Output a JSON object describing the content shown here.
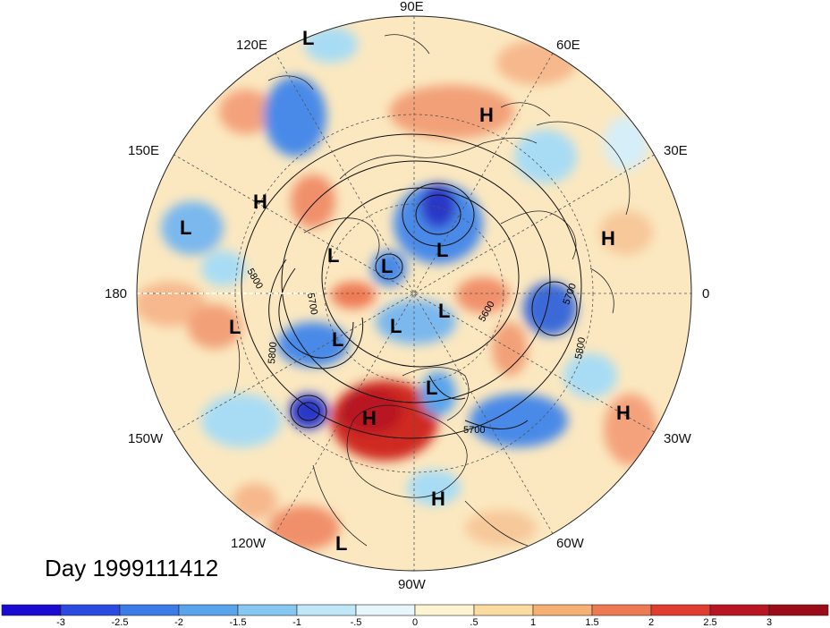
{
  "map": {
    "projection": "north polar stereographic",
    "longitude_labels": [
      {
        "text": "90E"
      },
      {
        "text": "60E"
      },
      {
        "text": "30E"
      },
      {
        "text": "0"
      },
      {
        "text": "30W"
      },
      {
        "text": "60W"
      },
      {
        "text": "90W"
      },
      {
        "text": "120W"
      },
      {
        "text": "150W"
      },
      {
        "text": "180"
      },
      {
        "text": "150E"
      },
      {
        "text": "120E"
      }
    ],
    "pressure_centers": [
      "L",
      "H",
      "H",
      "L",
      "L",
      "L",
      "L",
      "H",
      "L",
      "L",
      "L",
      "L",
      "L",
      "H",
      "H",
      "H",
      "L"
    ],
    "contour_labels": [
      "5800",
      "5700",
      "5800",
      "5600",
      "5700",
      "5700",
      "5800"
    ],
    "colors": {
      "strong_negative": "#2a38c8",
      "negative": "#4a8ae8",
      "weak_negative": "#a8dcf4",
      "weak_positive": "#fbe3b0",
      "positive": "#f0906a",
      "strong_positive": "#cf2a20"
    }
  },
  "day_label": "Day 1999111412",
  "colorbar": {
    "ticks": [
      "-3",
      "-2.5",
      "-2",
      "-1.5",
      "-1",
      "-.5",
      "0",
      ".5",
      "1",
      "1.5",
      "2",
      "2.5",
      "3"
    ],
    "colors": [
      "#1b0ad0",
      "#2a4ae0",
      "#3b7ce8",
      "#5aa4ec",
      "#86c8f0",
      "#bfe7f8",
      "#e6f6fb",
      "#fdf4d2",
      "#fadca0",
      "#f6b074",
      "#ee7a54",
      "#e03c30",
      "#b81622",
      "#9a0c18"
    ]
  }
}
